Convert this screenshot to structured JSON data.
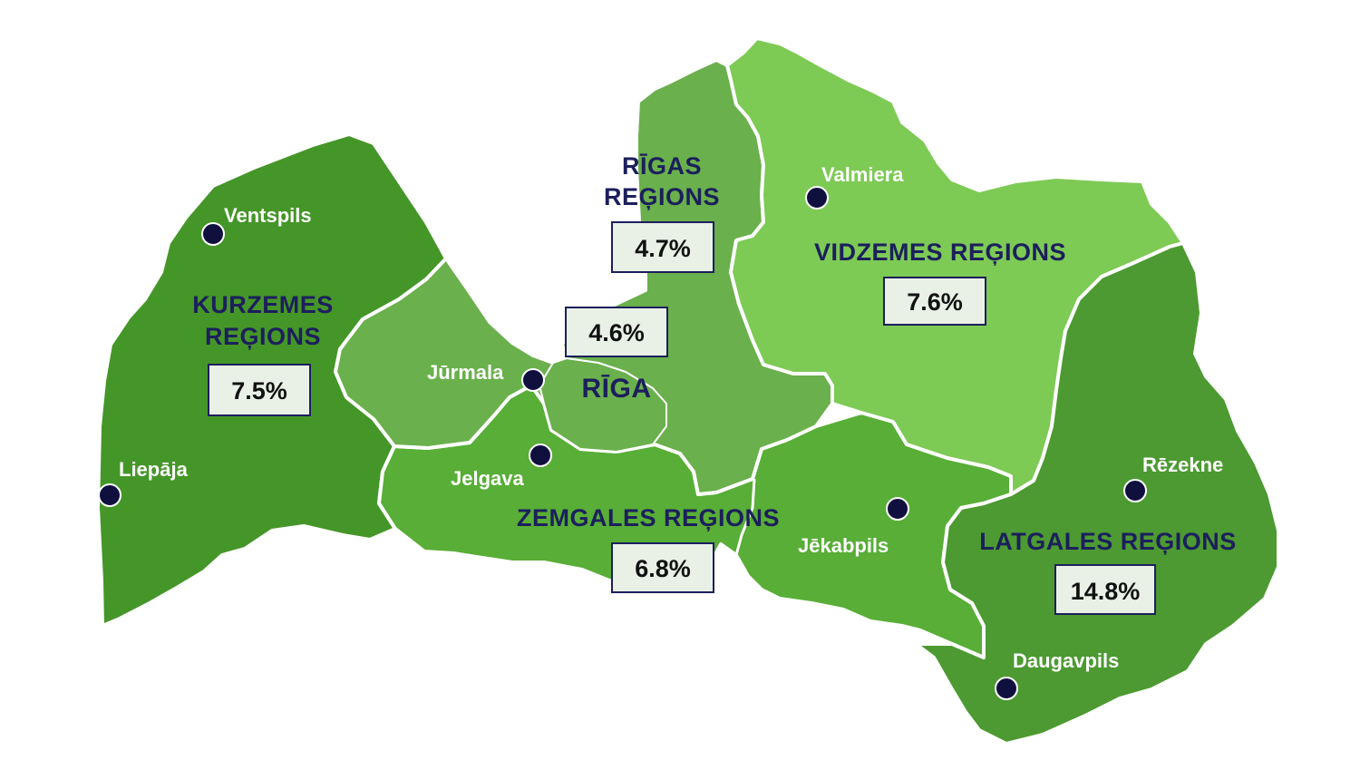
{
  "colors": {
    "kurzeme": "#459628",
    "rigas_region": "#6ab04c",
    "riga_city": "#6ab04c",
    "vidzeme": "#7dca55",
    "zemgale": "#58ae36",
    "latgale": "#4c9a31",
    "label_text": "#1c1f5c",
    "city_dot": "#10103e"
  },
  "regions": {
    "kurzeme": {
      "name_line1": "KURZEMES",
      "name_line2": "REĢIONS",
      "value": "7.5%"
    },
    "rigas": {
      "name_line1": "RĪGAS",
      "name_line2": "REĢIONS",
      "value": "4.7%"
    },
    "riga": {
      "name": "RĪGA",
      "value": "4.6%"
    },
    "vidzeme": {
      "name": "VIDZEMES REĢIONS",
      "value": "7.6%"
    },
    "zemgale": {
      "name": "ZEMGALES REĢIONS",
      "value": "6.8%"
    },
    "latgale": {
      "name": "LATGALES REĢIONS",
      "value": "14.8%"
    }
  },
  "cities": {
    "ventspils": "Ventspils",
    "liepaja": "Liepāja",
    "jurmala": "Jūrmala",
    "jelgava": "Jelgava",
    "valmiera": "Valmiera",
    "jekabpils": "Jēkabpils",
    "rezekne": "Rēzekne",
    "daugavpils": "Daugavpils"
  }
}
